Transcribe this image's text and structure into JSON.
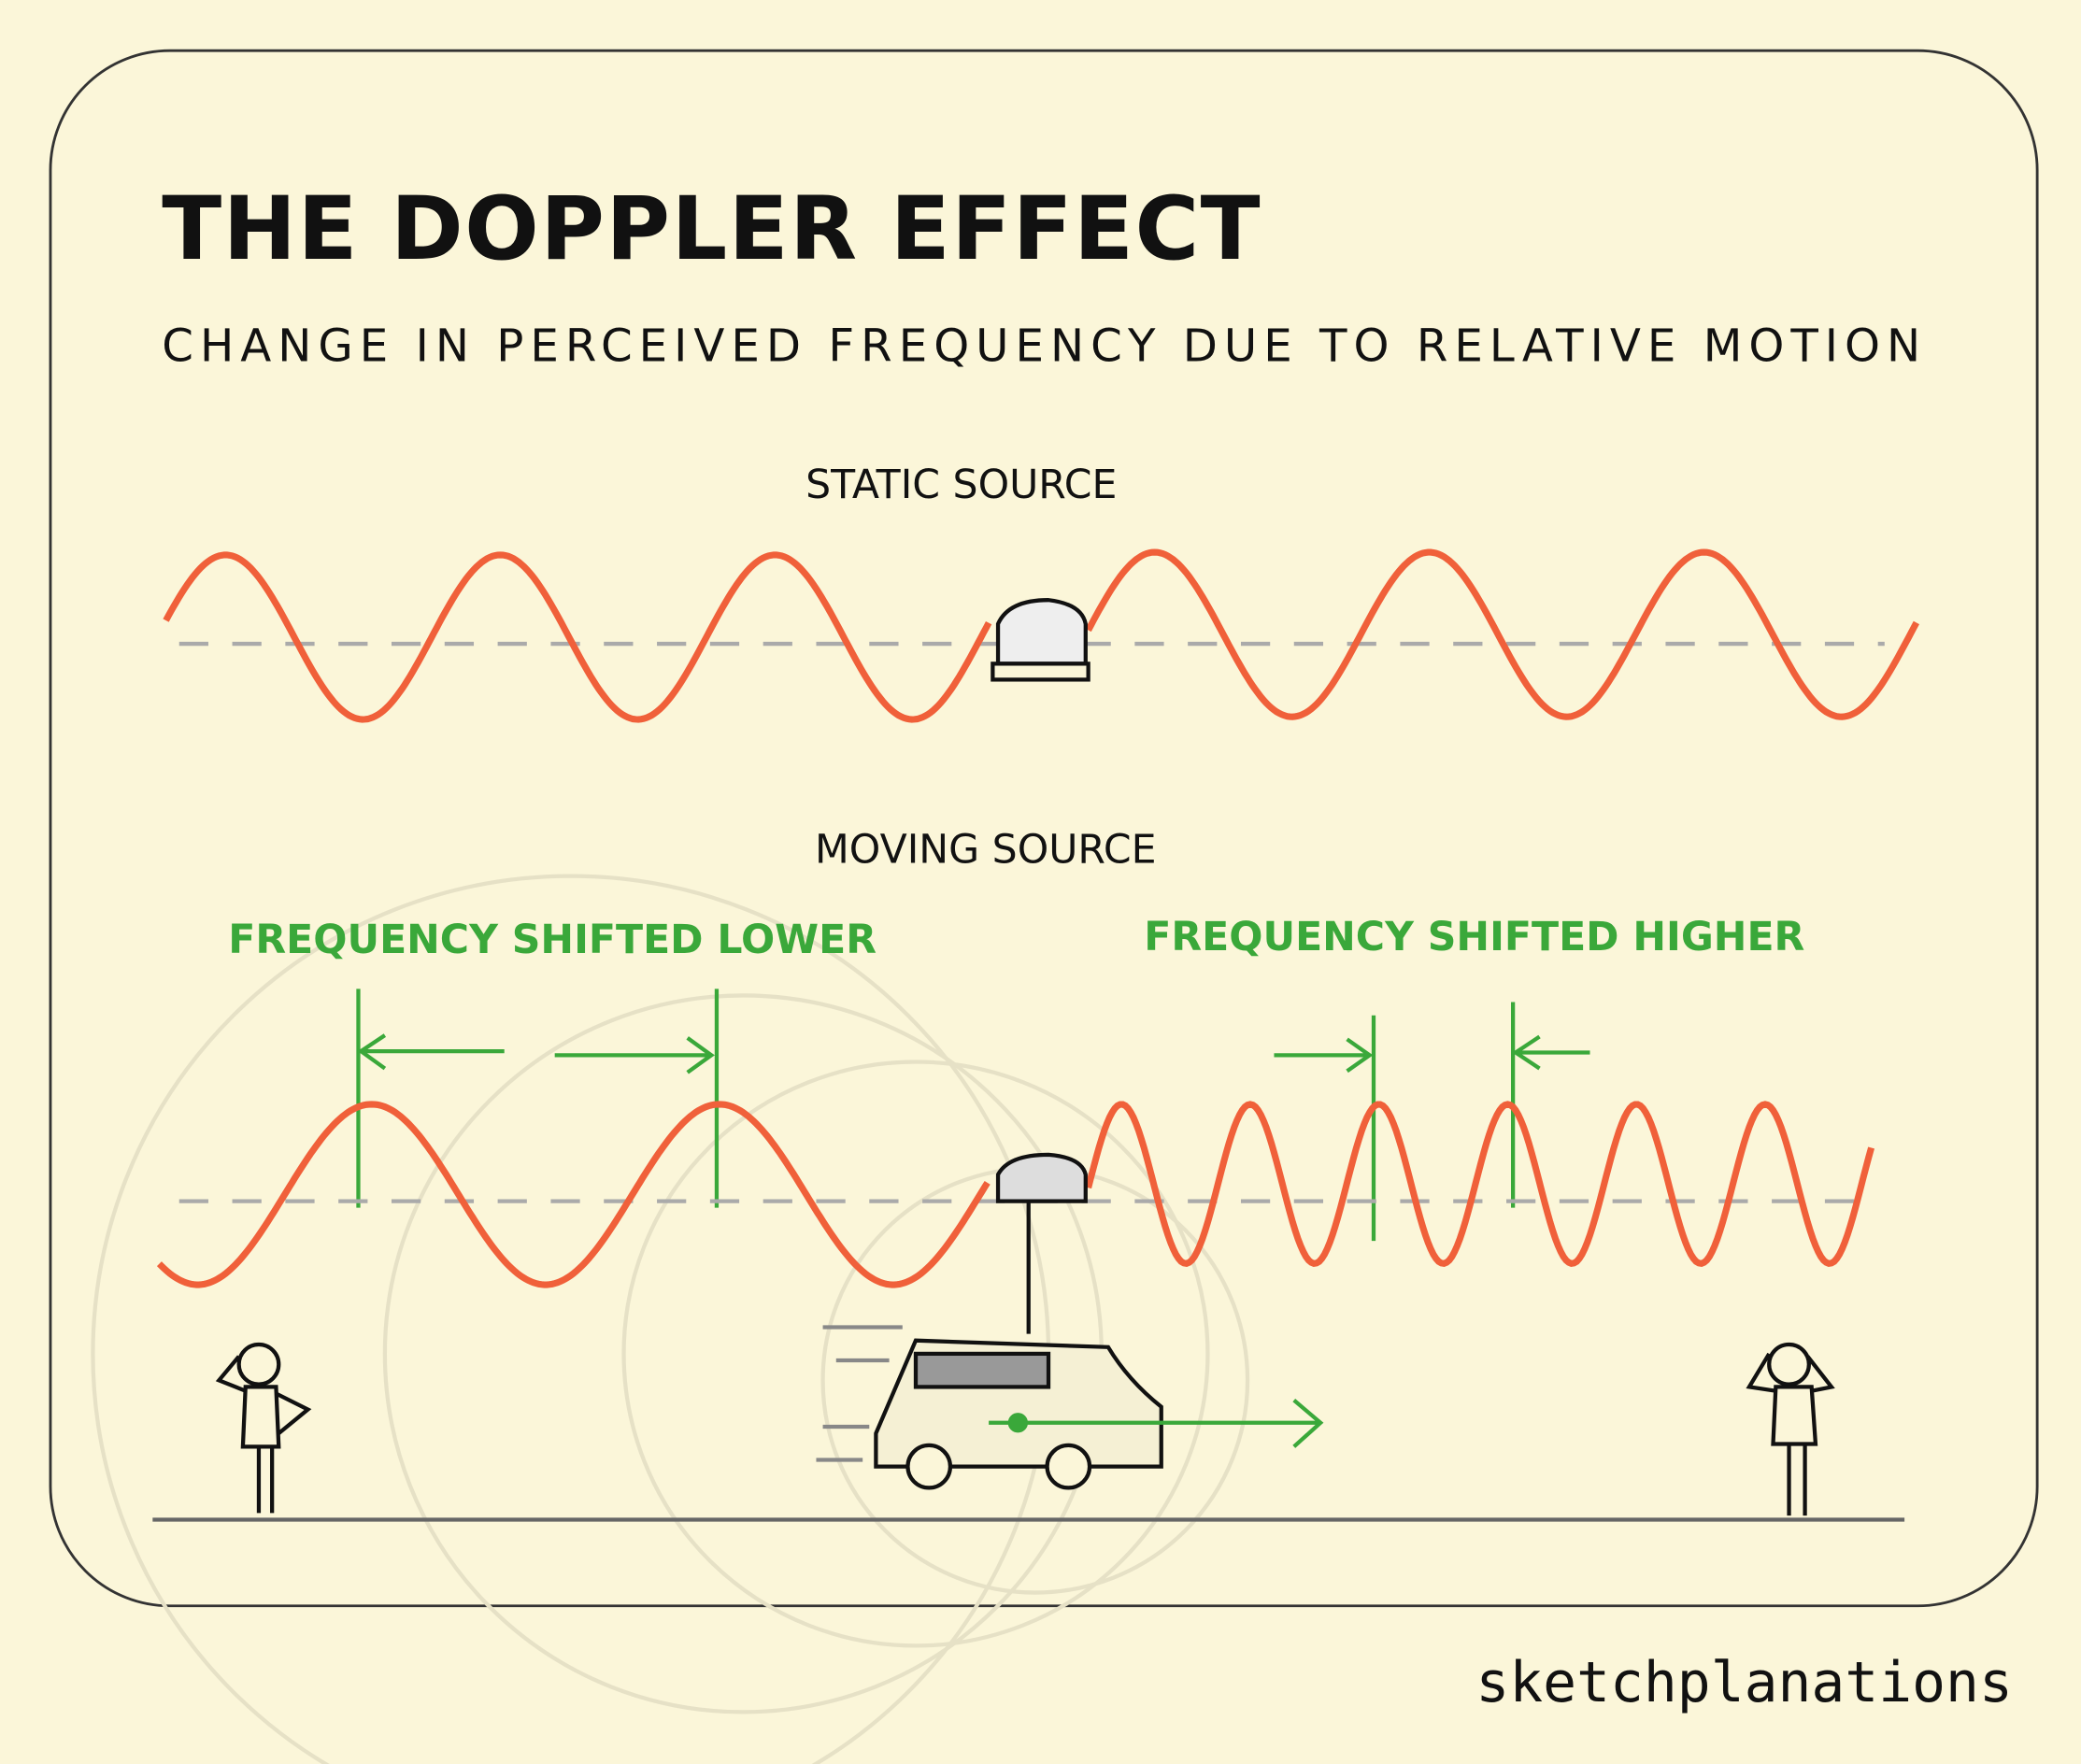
{
  "title": "THE DOPPLER EFFECT",
  "subtitle": "CHANGE IN PERCEIVED FREQUENCY DUE TO RELATIVE MOTION",
  "static_section": {
    "label": "STATIC SOURCE"
  },
  "moving_section": {
    "label": "MOVING SOURCE",
    "left_label": "FREQUENCY SHIFTED LOWER",
    "right_label": "FREQUENCY SHIFTED HIGHER"
  },
  "brand": "sketchplanations",
  "colors": {
    "background": "#fbf6d9",
    "wave": "#f0603a",
    "annotation": "#3aa83a",
    "ink": "#111111",
    "baseline": "#aaaaaa"
  },
  "icons": [
    "siren-icon",
    "van-icon",
    "person-icon",
    "arrow-right-icon"
  ]
}
